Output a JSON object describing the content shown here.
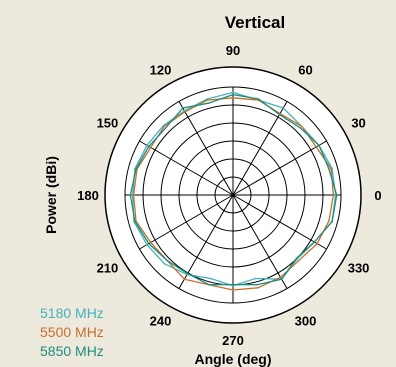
{
  "chart_data": {
    "type": "polar-line",
    "title": "Vertical",
    "ylabel": "Power (dBi)",
    "xlabel": "Angle (deg)",
    "angle_ticks": [
      "0",
      "30",
      "60",
      "90",
      "120",
      "150",
      "180",
      "210",
      "240",
      "270",
      "300",
      "330"
    ],
    "radial_rings": 6,
    "angle_units": "deg",
    "grid": true,
    "legend_placement": "bottom-left",
    "series": [
      {
        "name": "5180  MHz",
        "color": "#43b3bd",
        "angles": [
          0,
          15,
          30,
          45,
          60,
          75,
          90,
          105,
          120,
          135,
          150,
          165,
          180,
          195,
          210,
          225,
          240,
          255,
          270,
          285,
          300,
          315,
          330,
          345
        ],
        "values": [
          0.95,
          0.95,
          0.92,
          0.9,
          0.93,
          0.91,
          0.95,
          0.92,
          0.9,
          0.91,
          0.92,
          0.94,
          0.93,
          0.95,
          0.92,
          0.9,
          0.85,
          0.8,
          0.84,
          0.8,
          0.9,
          0.84,
          0.87,
          0.95
        ]
      },
      {
        "name": "5500 MHz",
        "color": "#c5702d",
        "angles": [
          0,
          15,
          30,
          45,
          60,
          75,
          90,
          105,
          120,
          135,
          150,
          165,
          180,
          195,
          210,
          225,
          240,
          255,
          270,
          285,
          300,
          315,
          330,
          345
        ],
        "values": [
          0.93,
          0.94,
          0.89,
          0.9,
          0.87,
          0.91,
          0.9,
          0.91,
          0.89,
          0.9,
          0.88,
          0.92,
          0.92,
          0.93,
          0.88,
          0.86,
          0.9,
          0.86,
          0.88,
          0.89,
          0.88,
          0.86,
          0.9,
          0.92
        ]
      },
      {
        "name": "5850 MHz",
        "color": "#1f8c7c",
        "angles": [
          0,
          15,
          30,
          45,
          60,
          75,
          90,
          105,
          120,
          135,
          150,
          165,
          180,
          195,
          210,
          225,
          240,
          255,
          270,
          285,
          300,
          315,
          330,
          345
        ],
        "values": [
          0.96,
          0.92,
          0.92,
          0.88,
          0.86,
          0.92,
          0.93,
          0.88,
          0.93,
          0.88,
          0.9,
          0.93,
          0.95,
          0.94,
          0.9,
          0.86,
          0.84,
          0.86,
          0.83,
          0.86,
          0.9,
          0.83,
          0.87,
          0.95
        ]
      }
    ]
  }
}
